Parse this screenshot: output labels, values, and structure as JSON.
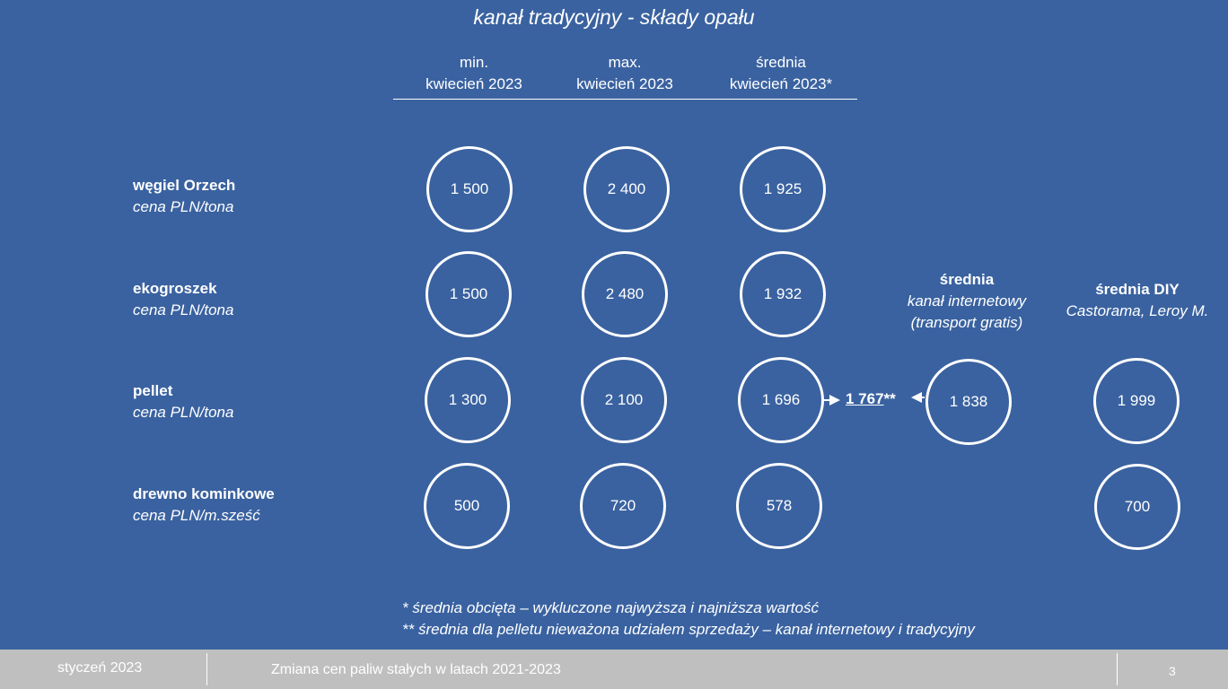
{
  "title": "kanał tradycyjny - składy opału",
  "columns": [
    {
      "line1": "min.",
      "line2": "kwiecień 2023"
    },
    {
      "line1": "max.",
      "line2": "kwiecień 2023"
    },
    {
      "line1": "średnia",
      "line2": "kwiecień 2023*"
    }
  ],
  "rows": [
    {
      "name": "węgiel Orzech",
      "unit": "cena PLN/tona",
      "min": "1 500",
      "max": "2 400",
      "avg": "1 925"
    },
    {
      "name": "ekogroszek",
      "unit": "cena PLN/tona",
      "min": "1 500",
      "max": "2 480",
      "avg": "1 932"
    },
    {
      "name": "pellet",
      "unit": "cena PLN/tona",
      "min": "1 300",
      "max": "2 100",
      "avg": "1 696"
    },
    {
      "name": "drewno kominkowe",
      "unit": "cena PLN/m.sześć",
      "min": "500",
      "max": "720",
      "avg": "578"
    }
  ],
  "internet": {
    "label": "średnia",
    "line2": "kanał internetowy",
    "line3": "(transport gratis)",
    "pellet": "1 838"
  },
  "diy": {
    "label": "średnia DIY",
    "line2": "Castorama, Leroy M.",
    "pellet": "1 999",
    "drewno": "700"
  },
  "combined": {
    "value": "1 767",
    "suffix": "**"
  },
  "notes": [
    "* średnia obcięta – wykluczone najwyższa i najniższa wartość",
    "** średnia dla pelletu nieważona udziałem sprzedaży – kanał internetowy i tradycyjny"
  ],
  "footer": {
    "date": "styczeń 2023",
    "subtitle": "Zmiana cen paliw stałych w latach 2021-2023",
    "page": "3"
  }
}
